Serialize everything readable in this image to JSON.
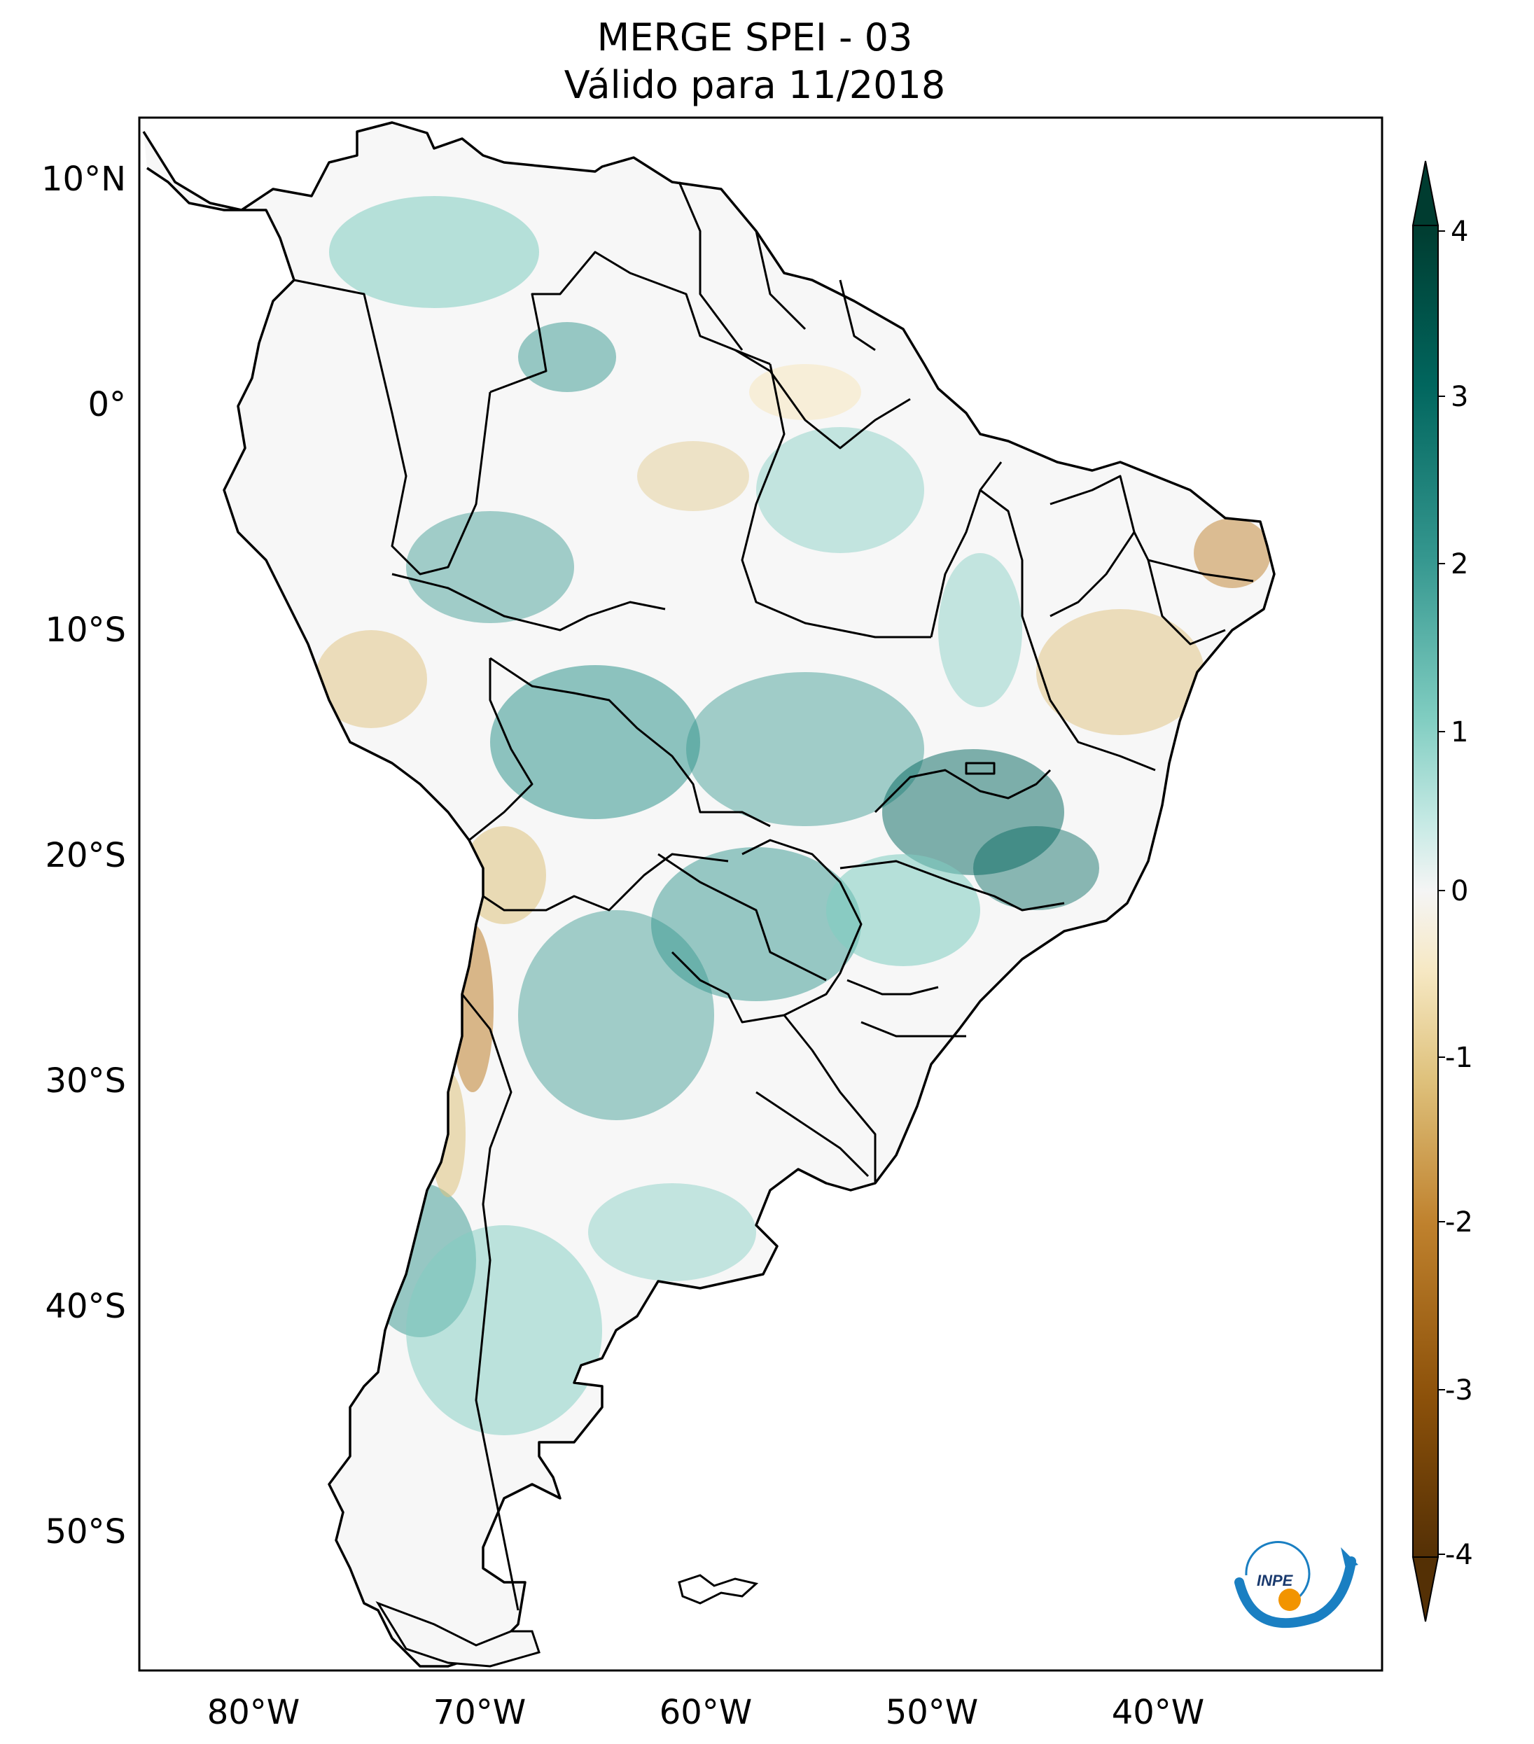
{
  "title": {
    "line1": "MERGE   SPEI - 03",
    "line2": "Válido para 11/2018"
  },
  "axes": {
    "lat_labels": [
      "10°N",
      "0°",
      "10°S",
      "20°S",
      "30°S",
      "40°S",
      "50°S"
    ],
    "lon_labels": [
      "80°W",
      "70°W",
      "60°W",
      "50°W",
      "40°W"
    ]
  },
  "colorbar": {
    "ticks": [
      "4",
      "3",
      "2",
      "1",
      "0",
      "-1",
      "-2",
      "-3",
      "-4"
    ],
    "colors": {
      "wet_max": "#003c30",
      "wet_high": "#01665e",
      "wet_mid": "#35978f",
      "wet_low": "#80cdc1",
      "wet_light": "#c7eae5",
      "neutral": "#f5f5f5",
      "dry_light": "#f6e8c3",
      "dry_low": "#dfc27d",
      "dry_mid": "#bf812d",
      "dry_high": "#8c510a",
      "dry_max": "#543005"
    }
  },
  "logo": {
    "text": "INPE"
  },
  "colors": {
    "land": "#f7f7f7",
    "wet_overlay": "#6cc0b0",
    "dry_overlay": "#dcbf88",
    "border": "#000000"
  }
}
